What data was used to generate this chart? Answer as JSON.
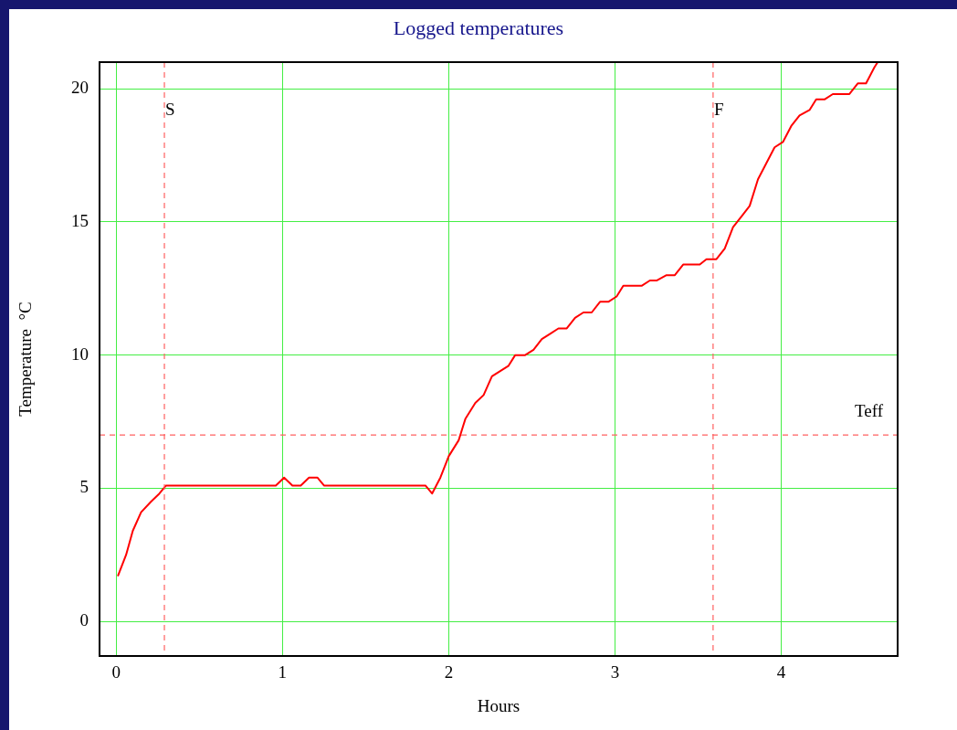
{
  "chart_data": {
    "type": "line",
    "title": "Logged temperatures",
    "xlabel": "Hours",
    "ylabel": "Temperature  °C",
    "x": [
      0.01,
      0.06,
      0.1,
      0.15,
      0.21,
      0.26,
      0.3,
      0.96,
      1.01,
      1.06,
      1.11,
      1.16,
      1.21,
      1.25,
      1.86,
      1.9,
      1.95,
      2.0,
      2.06,
      2.1,
      2.16,
      2.21,
      2.26,
      2.31,
      2.36,
      2.4,
      2.46,
      2.51,
      2.56,
      2.61,
      2.66,
      2.71,
      2.76,
      2.81,
      2.86,
      2.91,
      2.96,
      3.01,
      3.05,
      3.16,
      3.21,
      3.25,
      3.31,
      3.36,
      3.41,
      3.51,
      3.55,
      3.61,
      3.66,
      3.71,
      3.76,
      3.81,
      3.86,
      3.91,
      3.96,
      4.01,
      4.06,
      4.11,
      4.17,
      4.21,
      4.26,
      4.31,
      4.41,
      4.46,
      4.51,
      4.56,
      4.58
    ],
    "series": [
      {
        "color": "#ff0000",
        "values": [
          1.7,
          2.5,
          3.4,
          4.1,
          4.5,
          4.8,
          5.1,
          5.1,
          5.4,
          5.1,
          5.1,
          5.4,
          5.4,
          5.1,
          5.1,
          4.8,
          5.4,
          6.2,
          6.8,
          7.6,
          8.2,
          8.5,
          9.2,
          9.4,
          9.6,
          10,
          10,
          10.2,
          10.6,
          10.8,
          11,
          11,
          11.4,
          11.6,
          11.6,
          12,
          12,
          12.2,
          12.6,
          12.6,
          12.8,
          12.8,
          13,
          13,
          13.4,
          13.4,
          13.6,
          13.6,
          14,
          14.8,
          15.2,
          15.6,
          16.6,
          17.2,
          17.8,
          18,
          18.6,
          19,
          19.2,
          19.6,
          19.6,
          19.8,
          19.8,
          20.2,
          20.2,
          20.8,
          21
        ]
      }
    ],
    "xlim": [
      -0.1,
      4.7
    ],
    "xticks": [
      0,
      1,
      2,
      3,
      4
    ],
    "ylim": [
      -1.3,
      21
    ],
    "yticks": [
      0,
      5,
      10,
      15,
      20
    ],
    "ref_lines": [
      {
        "axis": "x",
        "value": 0.29,
        "label": "S",
        "color": "#ff6060",
        "line_style": "dashed"
      },
      {
        "axis": "x",
        "value": 3.59,
        "label": "F",
        "color": "#ff6060",
        "line_style": "dashed"
      },
      {
        "axis": "y",
        "value": 7,
        "label": "Teff",
        "color": "#ff6060",
        "line_style": "dashed"
      }
    ],
    "grid": true,
    "legend": false,
    "marker": "none",
    "line_style": "solid"
  }
}
